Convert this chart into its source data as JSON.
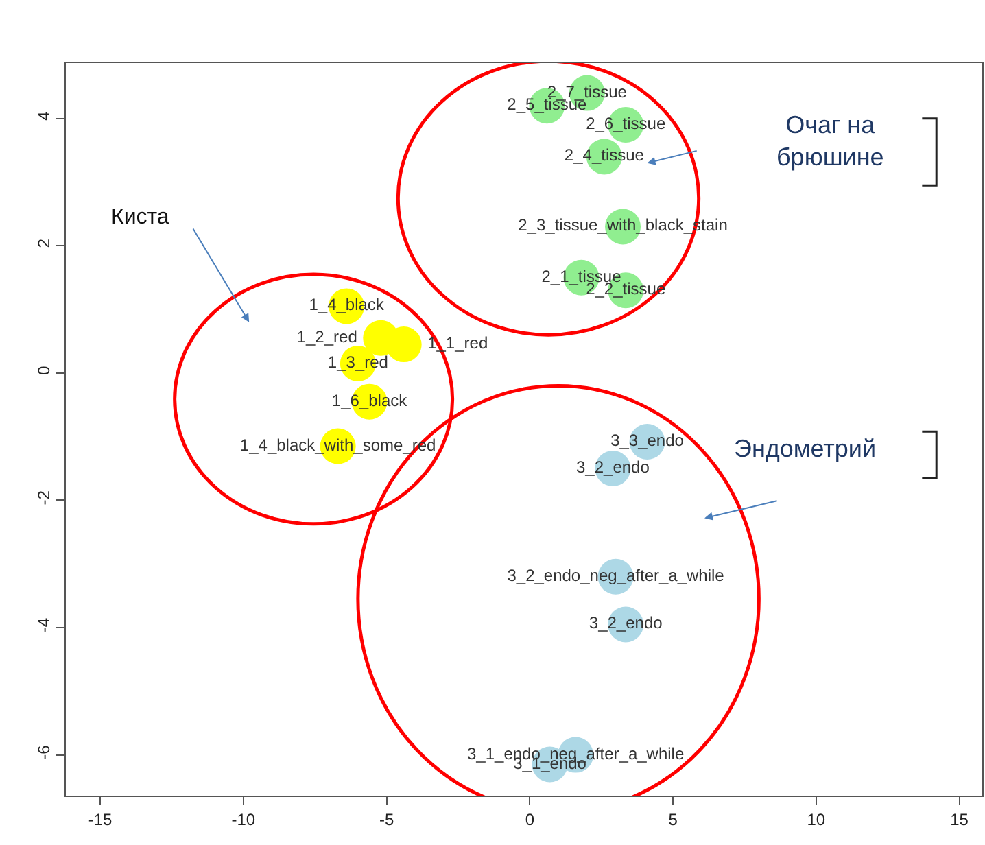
{
  "chart_data": {
    "type": "scatter",
    "xlim": [
      -16.2,
      15.8
    ],
    "ylim": [
      -6.64,
      4.87
    ],
    "xticks": [
      -15,
      -10,
      -5,
      0,
      5,
      10,
      15
    ],
    "yticks": [
      -6,
      -4,
      -2,
      0,
      2,
      4
    ],
    "marker": "circle",
    "series": [
      {
        "color": "#ffff00",
        "x": [
          -6.4,
          -5.2,
          -4.4,
          -6.0,
          -5.6,
          -6.7
        ],
        "values": [
          1.05,
          0.55,
          0.45,
          0.15,
          -0.45,
          -1.15
        ],
        "value_labels": [
          "1_4_black",
          "1_2_red",
          "1_1_red",
          "1_3_red",
          "1_6_black",
          "1_4_black_with_some_red"
        ]
      },
      {
        "color": "#90ee90",
        "x": [
          2.0,
          0.6,
          3.35,
          2.6,
          3.25,
          1.8,
          3.35
        ],
        "values": [
          4.4,
          4.2,
          3.9,
          3.4,
          2.3,
          1.5,
          1.3
        ],
        "value_labels": [
          "2_7_tissue",
          "2_5_tissue",
          "2_6_tissue",
          "2_4_tissue",
          "2_3_tissue_with_black_stain",
          "2_1_tissue",
          "2_2_tissue"
        ]
      },
      {
        "color": "#add8e6",
        "x": [
          4.1,
          2.9,
          3.0,
          3.35,
          1.6,
          0.7
        ],
        "values": [
          -1.08,
          -1.5,
          -3.2,
          -3.95,
          -6.0,
          -6.15
        ],
        "value_labels": [
          "3_3_endo",
          "3_2_endo",
          "3_2_endo_neg_after_a_while",
          "3_2_endo",
          "3_1_endo_neg_after_a_while",
          "3_1_endo"
        ]
      }
    ],
    "annotations": [
      "Киста",
      "Очаг на\nбрюшине",
      "Эндометрий"
    ]
  }
}
